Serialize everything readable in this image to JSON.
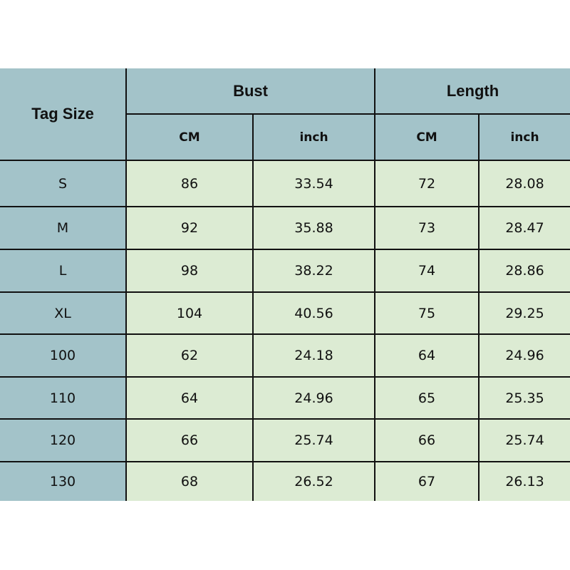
{
  "header": {
    "tag_size": "Tag Size",
    "bust": "Bust",
    "length": "Length",
    "cm": "CM",
    "inch": "inch"
  },
  "colors": {
    "header": "#a3c3c9",
    "cell": "#dcebd3",
    "border": "#111111"
  },
  "rows": [
    {
      "size": "S",
      "bust_cm": "86",
      "bust_inch": "33.54",
      "length_cm": "72",
      "length_inch": "28.08"
    },
    {
      "size": "M",
      "bust_cm": "92",
      "bust_inch": "35.88",
      "length_cm": "73",
      "length_inch": "28.47"
    },
    {
      "size": "L",
      "bust_cm": "98",
      "bust_inch": "38.22",
      "length_cm": "74",
      "length_inch": "28.86"
    },
    {
      "size": "XL",
      "bust_cm": "104",
      "bust_inch": "40.56",
      "length_cm": "75",
      "length_inch": "29.25"
    },
    {
      "size": "100",
      "bust_cm": "62",
      "bust_inch": "24.18",
      "length_cm": "64",
      "length_inch": "24.96"
    },
    {
      "size": "110",
      "bust_cm": "64",
      "bust_inch": "24.96",
      "length_cm": "65",
      "length_inch": "25.35"
    },
    {
      "size": "120",
      "bust_cm": "66",
      "bust_inch": "25.74",
      "length_cm": "66",
      "length_inch": "25.74"
    },
    {
      "size": "130",
      "bust_cm": "68",
      "bust_inch": "26.52",
      "length_cm": "67",
      "length_inch": "26.13"
    }
  ]
}
